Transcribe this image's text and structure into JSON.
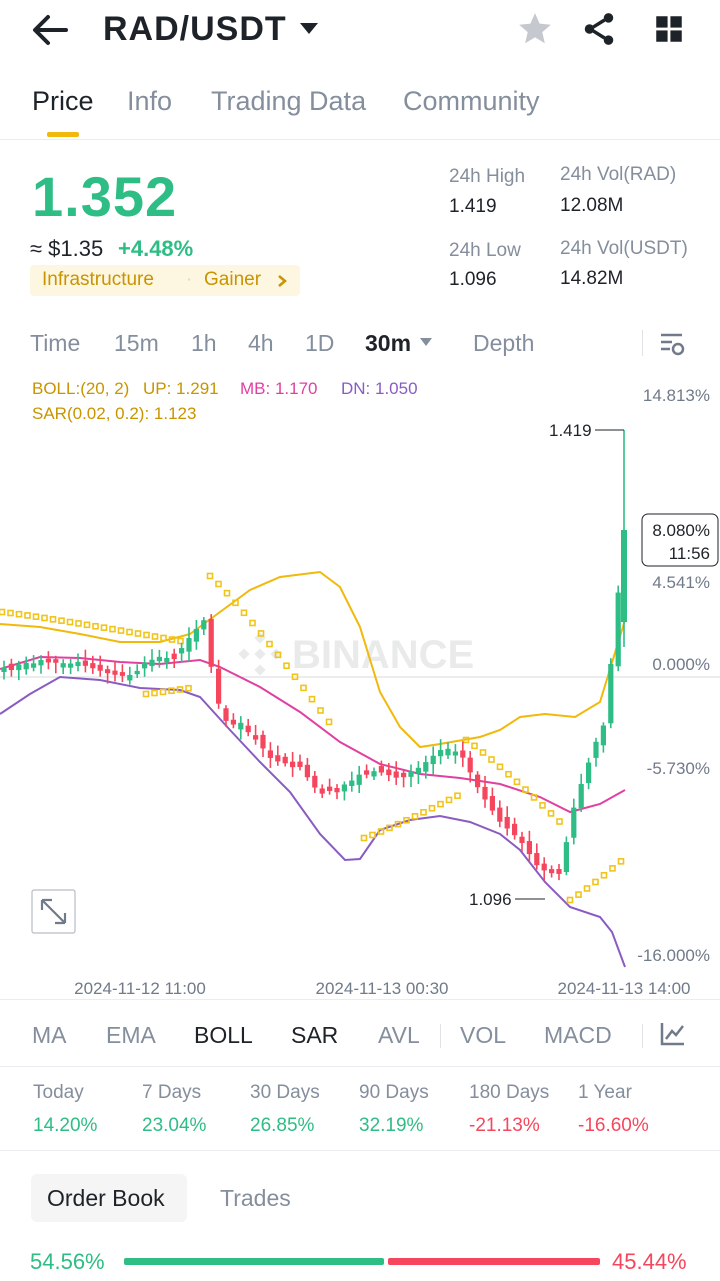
{
  "header": {
    "title": "RAD/USDT",
    "icons": [
      "arrow-left-icon",
      "caret-down-icon",
      "star-icon",
      "share-icon",
      "grid-icon"
    ]
  },
  "tabs": [
    {
      "label": "Price",
      "active": true
    },
    {
      "label": "Info"
    },
    {
      "label": "Trading Data"
    },
    {
      "label": "Community"
    }
  ],
  "ticker": {
    "price": "1.352",
    "approx": "≈ $1.35",
    "change": "+4.48%",
    "tag1": "Infrastructure",
    "tag2": "Gainer",
    "high_label": "24h High",
    "high": "1.419",
    "low_label": "24h Low",
    "low": "1.096",
    "vol_rad_label": "24h Vol(RAD)",
    "vol_rad": "12.08M",
    "vol_usdt_label": "24h Vol(USDT)",
    "vol_usdt": "14.82M"
  },
  "intervals": {
    "time": "Time",
    "m15": "15m",
    "h1": "1h",
    "h4": "4h",
    "d1": "1D",
    "m30": "30m",
    "depth": "Depth"
  },
  "chart": {
    "boll_label": "BOLL:(20, 2)",
    "up": "UP: 1.291",
    "mb": "MB: 1.170",
    "dn": "DN: 1.050",
    "sar": "SAR(0.02, 0.2): 1.123",
    "y_labels": [
      "14.813%",
      "4.541%",
      "0.000%",
      "-5.730%",
      "-16.000%"
    ],
    "high_marker": "1.419",
    "low_marker": "1.096",
    "current_pct": "8.080%",
    "current_time": "11:56",
    "x_labels": [
      "2024-11-12 11:00",
      "2024-11-13 00:30",
      "2024-11-13 14:00"
    ],
    "watermark": "BINANCE",
    "colors": {
      "up": "#2ebd85",
      "down": "#f6465d",
      "boll_up": "#f0b90b",
      "boll_mb": "#e040a0",
      "boll_dn": "#8a5cc2",
      "sar": "#f0c419"
    }
  },
  "indicators": {
    "ma": "MA",
    "ema": "EMA",
    "boll": "BOLL",
    "sar": "SAR",
    "avl": "AVL",
    "vol": "VOL",
    "macd": "MACD"
  },
  "performance": [
    {
      "label": "Today",
      "value": "14.20%"
    },
    {
      "label": "7 Days",
      "value": "23.04%"
    },
    {
      "label": "30 Days",
      "value": "26.85%"
    },
    {
      "label": "90 Days",
      "value": "32.19%"
    },
    {
      "label": "180 Days",
      "value": "-21.13%"
    },
    {
      "label": "1 Year",
      "value": "-16.60%"
    }
  ],
  "orderbook": {
    "tab_orderbook": "Order Book",
    "tab_trades": "Trades",
    "buy_pct": "54.56%",
    "buy_fraction": 0.5456,
    "sell_pct": "45.44%"
  }
}
